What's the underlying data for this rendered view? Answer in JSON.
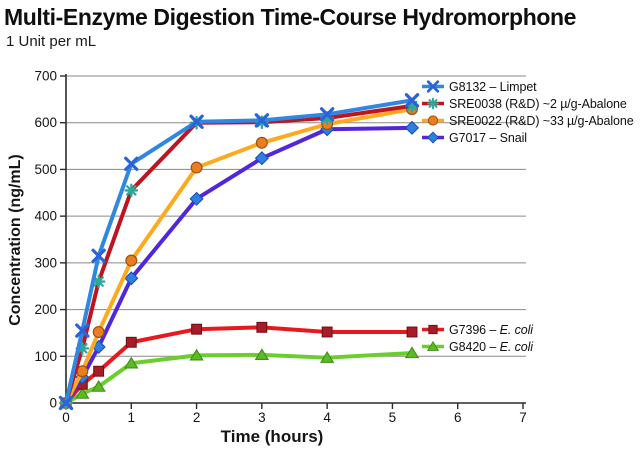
{
  "header": {
    "title": "Multi-Enzyme Digestion Time-Course Hydromorphone",
    "subtitle": "1 Unit per mL"
  },
  "chart_data": {
    "type": "line",
    "title": "Multi-Enzyme Digestion Time-Course Hydromorphone",
    "subtitle": "1 Unit per mL",
    "xlabel": "Time (hours)",
    "ylabel": "Concentration (ng/mL)",
    "xlim": [
      0,
      7
    ],
    "ylim": [
      0,
      700
    ],
    "x_ticks": [
      0,
      1,
      2,
      3,
      4,
      5,
      6,
      7
    ],
    "y_ticks": [
      0,
      100,
      200,
      300,
      400,
      500,
      600,
      700
    ],
    "grid": "horizontal",
    "grid_color": "#8a8a8a",
    "axis_color": "#2b2b2b",
    "legend_position": "inside top-right (enzymes) and inside middle-right (E. coli controls)",
    "x": [
      0,
      0.25,
      0.5,
      1,
      2,
      3,
      4,
      5.3
    ],
    "series": [
      {
        "id": "G8420",
        "label_prefix": "G8420 – ",
        "label_italic": "E. coli",
        "legend_group": "side",
        "marker": "triangle",
        "line_color": "#6cce2e",
        "marker_color": "#5abb25",
        "marker_stroke": "#3f8f15",
        "values": [
          0,
          20,
          35,
          85,
          102,
          103,
          97,
          107
        ]
      },
      {
        "id": "G7396",
        "label_prefix": "G7396 – ",
        "label_italic": "E. coli",
        "legend_group": "side",
        "marker": "square",
        "line_color": "#e8191c",
        "marker_color": "#a81c28",
        "marker_stroke": "#70101b",
        "values": [
          0,
          40,
          68,
          130,
          158,
          162,
          152,
          152
        ]
      },
      {
        "id": "G7017",
        "label_prefix": "G7017 – Snail",
        "label_italic": "",
        "legend_group": "top",
        "marker": "diamond",
        "line_color": "#5226db",
        "marker_color": "#2f7fe0",
        "marker_stroke": "#1a4fb5",
        "values": [
          0,
          55,
          120,
          267,
          437,
          524,
          586,
          589
        ]
      },
      {
        "id": "SRE0022",
        "label_prefix": "SRE0022 (R&D) ~33 µ/g-Abalone",
        "label_italic": "",
        "legend_group": "top",
        "marker": "circle",
        "line_color": "#ffaa1e",
        "marker_color": "#e87e1f",
        "marker_stroke": "#9c5210",
        "values": [
          0,
          68,
          152,
          305,
          504,
          557,
          597,
          629
        ]
      },
      {
        "id": "SRE0038",
        "label_prefix": "SRE0038 (R&D) ~2 µ/g-Abalone",
        "label_italic": "",
        "legend_group": "top",
        "marker": "asterisk",
        "line_color": "#be1420",
        "marker_color": "#2fa89a",
        "marker_stroke": "#2fa89a",
        "values": [
          0,
          117,
          260,
          455,
          600,
          601,
          610,
          636
        ]
      },
      {
        "id": "G8132",
        "label_prefix": "G8132 – Limpet",
        "label_italic": "",
        "legend_group": "top",
        "marker": "x",
        "line_color": "#2f87e2",
        "marker_color": "#2b63d9",
        "marker_stroke": "#2b63d9",
        "values": [
          0,
          155,
          315,
          512,
          602,
          605,
          618,
          648
        ]
      }
    ],
    "legend_order_top": [
      "G8132",
      "SRE0038",
      "SRE0022",
      "G7017"
    ],
    "legend_order_side": [
      "G7396",
      "G8420"
    ]
  }
}
